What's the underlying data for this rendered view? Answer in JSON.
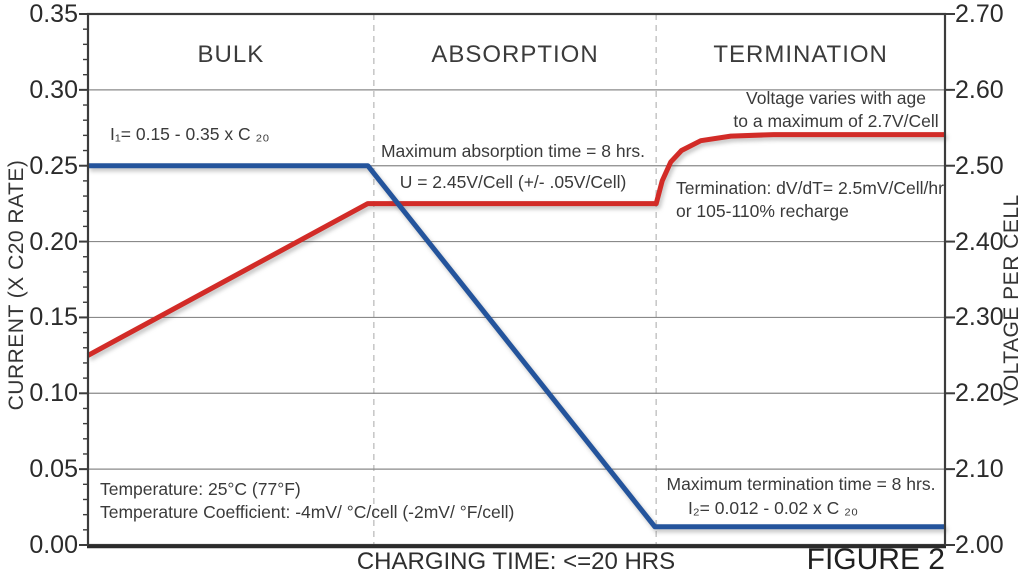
{
  "figure": {
    "caption": "FIGURE 2"
  },
  "colors": {
    "current_line": "#24549c",
    "voltage_line": "#d22b27",
    "grid": "#8a8a8a",
    "frame": "#3c3c3c",
    "frame_emphasis": "#2b2b2b",
    "dashed_boundary": "#c9c9c9",
    "text": "#3a3a3a"
  },
  "chart_data": {
    "type": "line",
    "title": "",
    "x_axis": {
      "label": "CHARGING TIME: <=20 HRS",
      "range_hrs": [
        0,
        20
      ],
      "grid": false
    },
    "y_left": {
      "label": "CURRENT (X C20 RATE)",
      "min": 0.0,
      "max": 0.35,
      "tick_step": 0.05,
      "minor_tick_step": 0.01,
      "ticks": [
        "0.35",
        "0.30",
        "0.25",
        "0.20",
        "0.15",
        "0.10",
        "0.05",
        "0.00"
      ],
      "grid": true
    },
    "y_right": {
      "label": "VOLTAGE PER CELL",
      "min": 2.0,
      "max": 2.7,
      "tick_step": 0.1,
      "ticks": [
        "2.70",
        "2.60",
        "2.50",
        "2.40",
        "2.30",
        "2.20",
        "2.10",
        "2.00"
      ],
      "grid": false
    },
    "phases": [
      {
        "label": "BULK"
      },
      {
        "label": "ABSORPTION"
      },
      {
        "label": "TERMINATION"
      }
    ],
    "phase_boundaries_hrs": [
      6.67,
      13.26
    ],
    "series": [
      {
        "name": "cell-voltage",
        "axis": "right",
        "color": "#d22b27",
        "points": [
          [
            0,
            2.25
          ],
          [
            6.53,
            2.45
          ],
          [
            13.26,
            2.45
          ],
          [
            13.4,
            2.48
          ],
          [
            13.6,
            2.505
          ],
          [
            13.85,
            2.52
          ],
          [
            14.3,
            2.533
          ],
          [
            15.0,
            2.539
          ],
          [
            16.0,
            2.541
          ],
          [
            20,
            2.541
          ]
        ]
      },
      {
        "name": "charge-current",
        "axis": "left",
        "color": "#24549c",
        "points": [
          [
            0,
            0.25
          ],
          [
            6.53,
            0.25
          ],
          [
            13.23,
            0.012
          ],
          [
            20,
            0.012
          ]
        ]
      }
    ],
    "annotations": {
      "i1_formula": "I₁= 0.15 - 0.35 x C ₂₀",
      "max_absorption": "Maximum absorption time = 8 hrs.",
      "u_formula": "U = 2.45V/Cell (+/- .05V/Cell)",
      "voltage_age_line1": "Voltage varies with age",
      "voltage_age_line2": "to a maximum of 2.7V/Cell",
      "termination_line1": "Termination: dV/dT= 2.5mV/Cell/hr",
      "termination_line2": "or 105-110% recharge",
      "temperature_line1": "Temperature: 25°C (77°F)",
      "temperature_line2": "Temperature Coefficient: -4mV/ °C/cell (-2mV/ °F/cell)",
      "max_termination": "Maximum termination time = 8 hrs.",
      "i2_formula": "I₂= 0.012 - 0.02 x C ₂₀"
    }
  }
}
